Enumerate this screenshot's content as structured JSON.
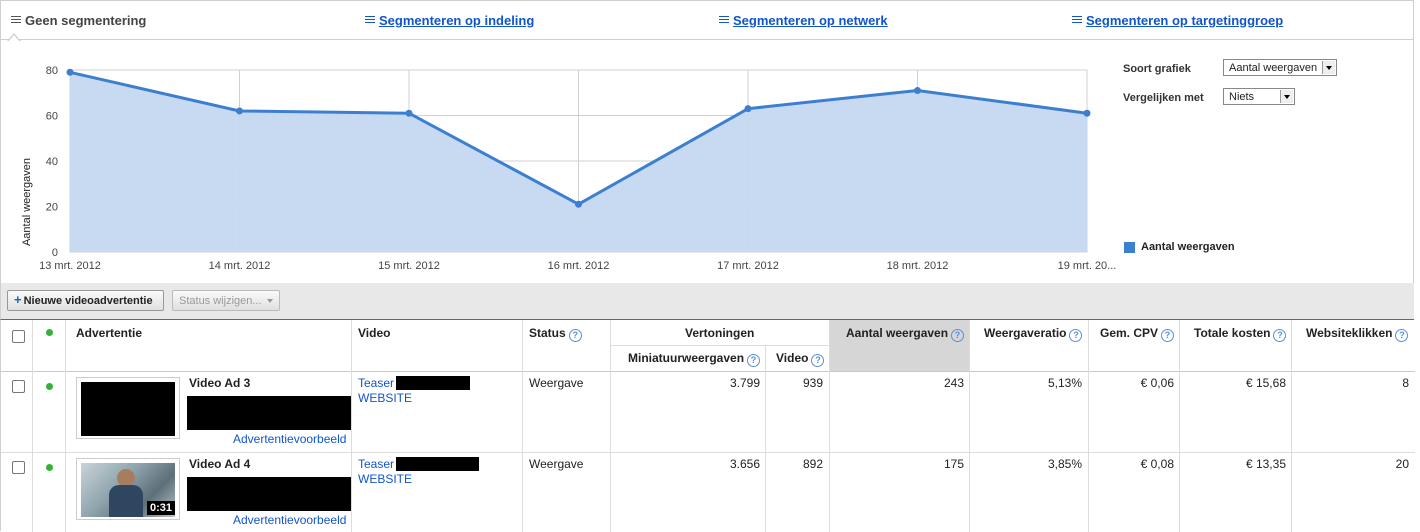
{
  "tabs": {
    "active": "Geen segmentering",
    "links": [
      "Segmenteren op indeling",
      "Segmenteren op netwerk",
      "Segmenteren op targetinggroep"
    ]
  },
  "chart_controls": {
    "type_label": "Soort grafiek",
    "type_value": "Aantal weergaven",
    "compare_label": "Vergelijken met",
    "compare_value": "Niets"
  },
  "chart_data": {
    "type": "area",
    "x": [
      "13 mrt. 2012",
      "14 mrt. 2012",
      "15 mrt. 2012",
      "16 mrt. 2012",
      "17 mrt. 2012",
      "18 mrt. 2012",
      "19 mrt. 20..."
    ],
    "series": [
      {
        "name": "Aantal weergaven",
        "values": [
          79,
          62,
          61,
          21,
          63,
          71,
          61
        ]
      }
    ],
    "ylabel": "Aantal weergaven",
    "ylim": [
      0,
      80
    ],
    "yticks": [
      "0",
      "20",
      "40",
      "60",
      "80"
    ],
    "grid": true,
    "legend": "right",
    "line_color": "#3d7fcf",
    "fill_color": "#c5d8f1"
  },
  "toolbar": {
    "new_ad_label": "Nieuwe videoadvertentie",
    "status_label": "Status wijzigen..."
  },
  "table": {
    "headers": {
      "ad": "Advertentie",
      "video": "Video",
      "status": "Status",
      "impressions": "Vertoningen",
      "thumb_views": "Miniatuurweergaven",
      "video_imp": "Video",
      "views": "Aantal weergaven",
      "view_rate": "Weergaveratio",
      "avg_cpv": "Gem. CPV",
      "total_cost": "Totale kosten",
      "site_clicks": "Websiteklikken"
    },
    "rows": [
      {
        "ad_name": "Video Ad 3",
        "preview_link": "Advertentievoorbeeld",
        "video_title": "Teaser",
        "video_site": "WEBSITE",
        "status": "Weergave",
        "thumb_views": "3.799",
        "video_imp": "939",
        "views": "243",
        "view_rate": "5,13%",
        "avg_cpv": "€ 0,06",
        "total_cost": "€ 15,68",
        "site_clicks": "8"
      },
      {
        "ad_name": "Video Ad 4",
        "preview_link": "Advertentievoorbeeld",
        "video_title": "Teaser",
        "video_site": "WEBSITE",
        "status": "Weergave",
        "thumb_views": "3.656",
        "video_imp": "892",
        "views": "175",
        "view_rate": "3,85%",
        "avg_cpv": "€ 0,08",
        "total_cost": "€ 13,35",
        "site_clicks": "20",
        "duration": "0:31"
      }
    ]
  }
}
